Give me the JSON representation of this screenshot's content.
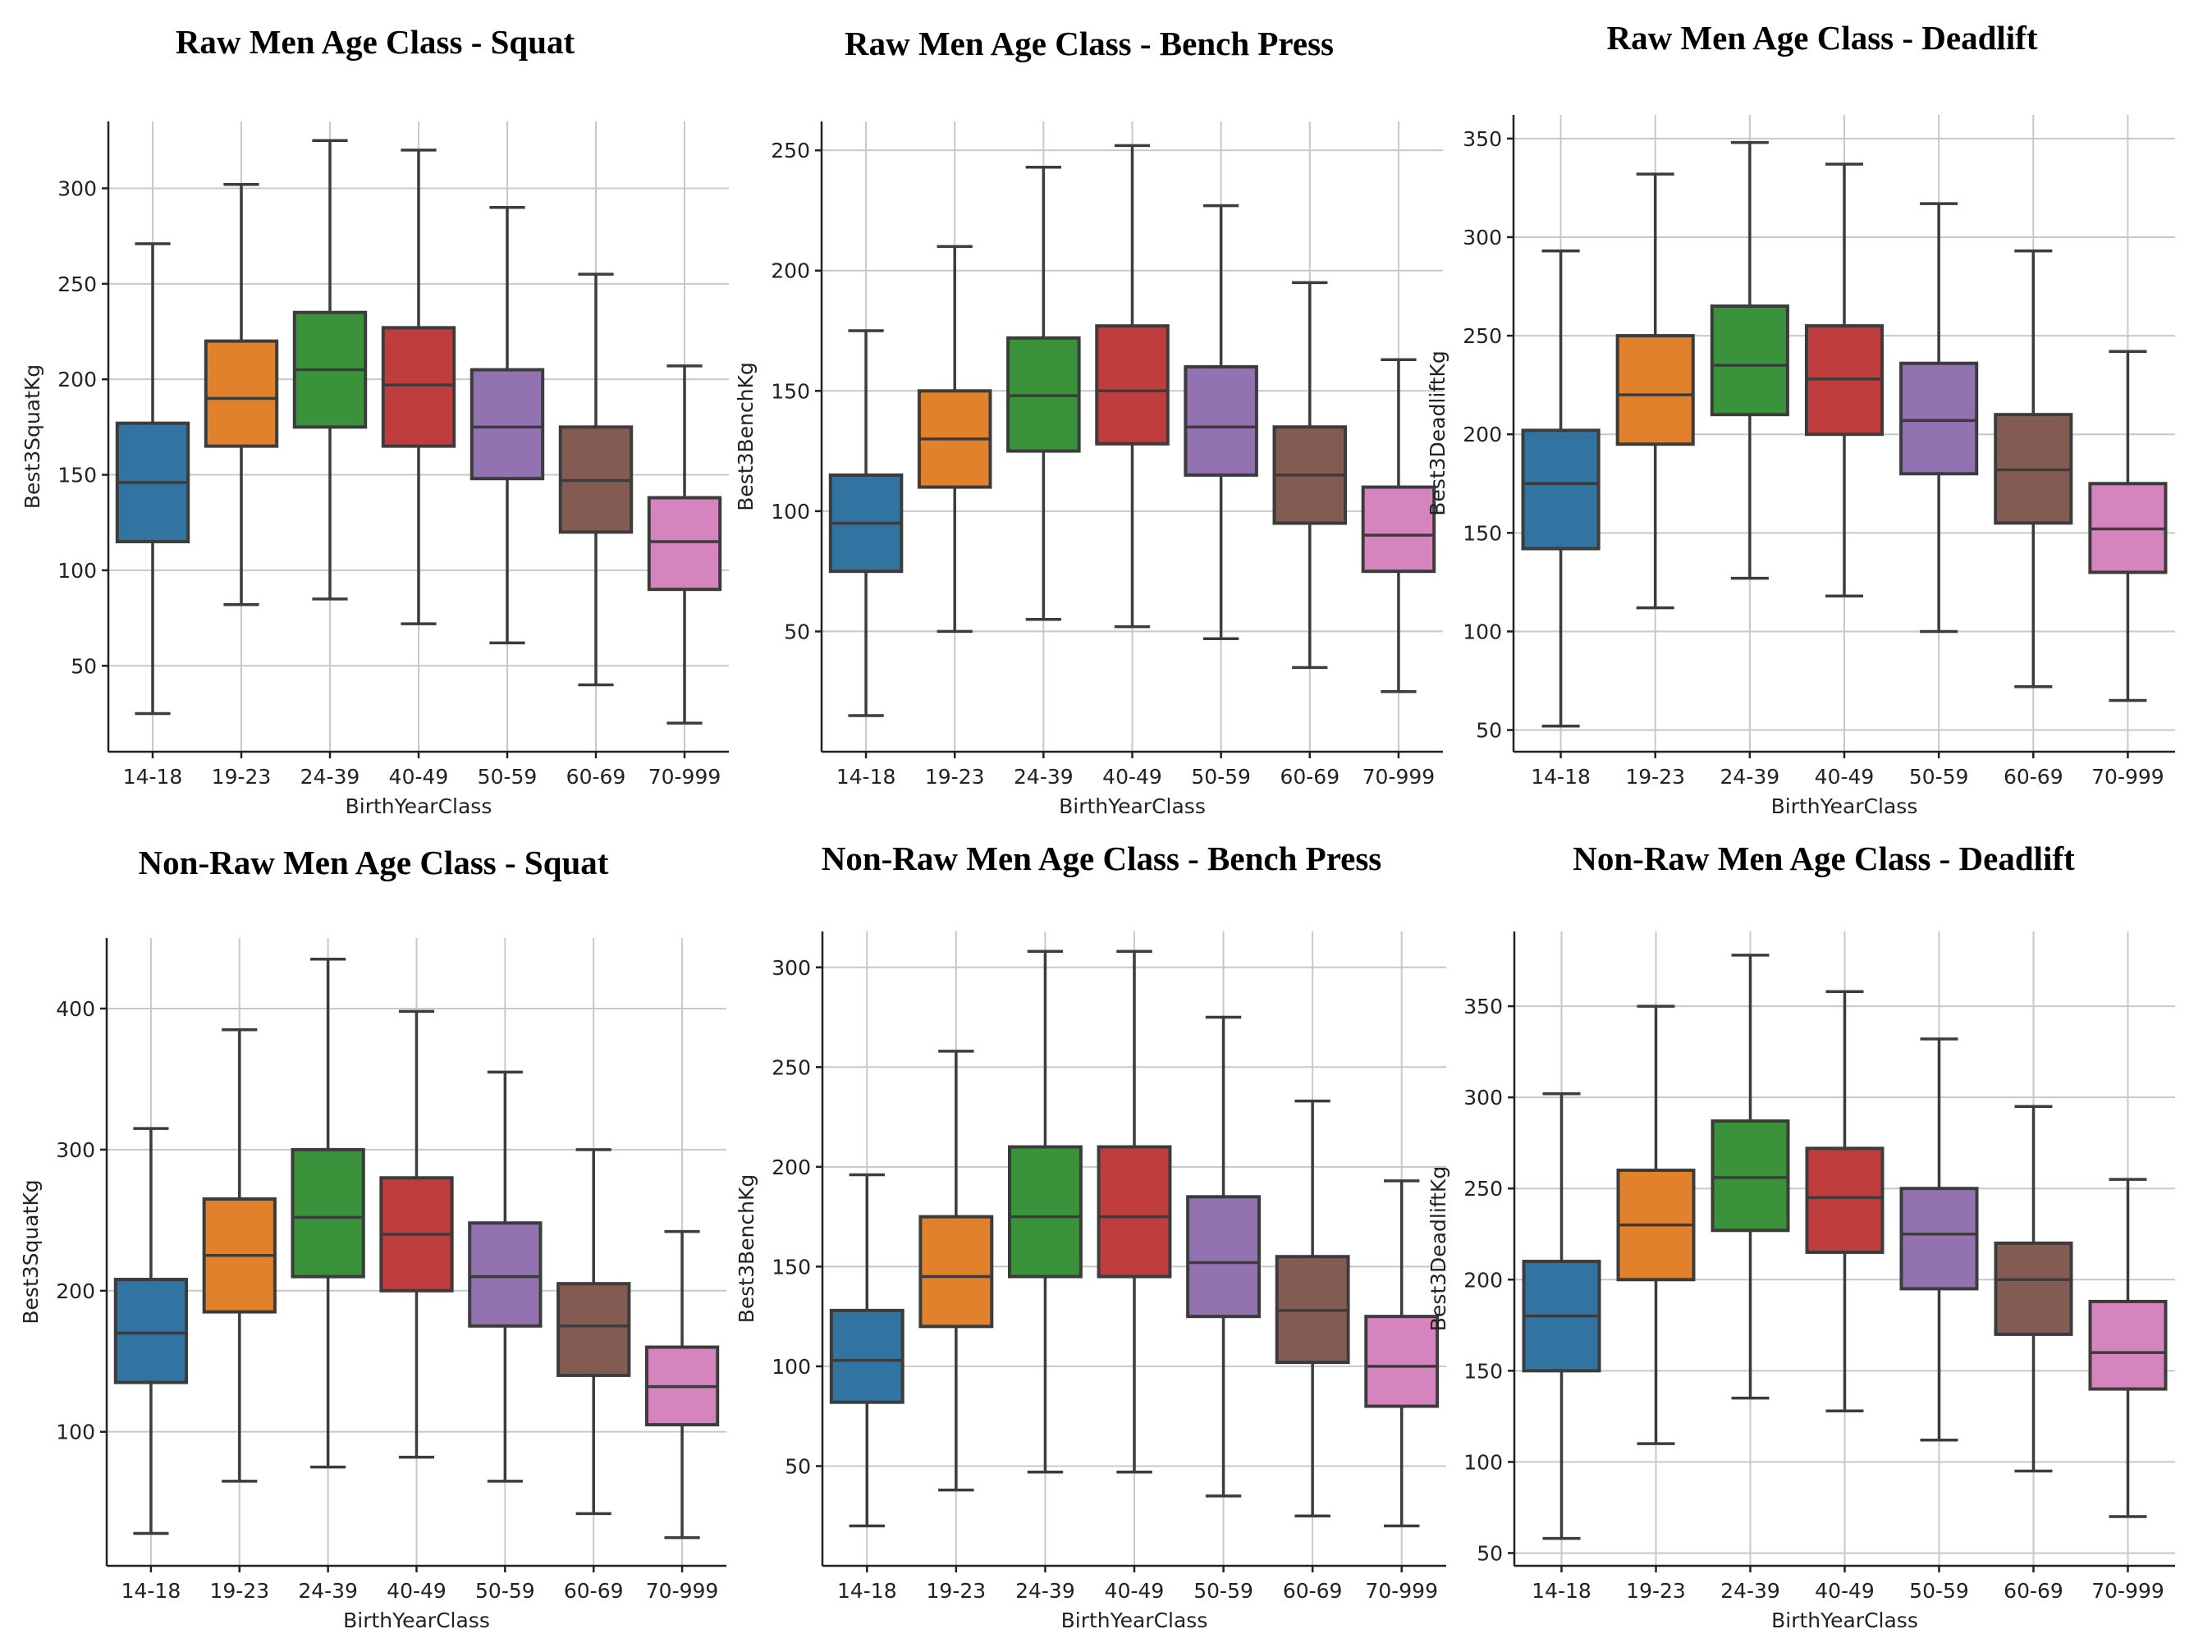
{
  "colors": {
    "14-18": "#3274a1",
    "19-23": "#e1812c",
    "24-39": "#3a923a",
    "40-49": "#c03d3e",
    "50-59": "#9372b2",
    "60-69": "#845b53",
    "70-999": "#d684bd"
  },
  "chart_data": [
    {
      "type": "box",
      "title": "Raw Men Age Class - Squat",
      "xlabel": "BirthYearClass",
      "ylabel": "Best3SquatKg",
      "categories": [
        "14-18",
        "19-23",
        "24-39",
        "40-49",
        "50-59",
        "60-69",
        "70-999"
      ],
      "ylim": [
        5,
        335
      ],
      "yticks": [
        50,
        100,
        150,
        200,
        250,
        300
      ],
      "grid": true,
      "boxes": [
        {
          "min": 25,
          "q1": 115,
          "median": 146,
          "q3": 177,
          "max": 271
        },
        {
          "min": 82,
          "q1": 165,
          "median": 190,
          "q3": 220,
          "max": 302
        },
        {
          "min": 85,
          "q1": 175,
          "median": 205,
          "q3": 235,
          "max": 325
        },
        {
          "min": 72,
          "q1": 165,
          "median": 197,
          "q3": 227,
          "max": 320
        },
        {
          "min": 62,
          "q1": 148,
          "median": 175,
          "q3": 205,
          "max": 290
        },
        {
          "min": 40,
          "q1": 120,
          "median": 147,
          "q3": 175,
          "max": 255
        },
        {
          "min": 20,
          "q1": 90,
          "median": 115,
          "q3": 138,
          "max": 207
        }
      ]
    },
    {
      "type": "box",
      "title": "Raw Men Age Class - Bench Press",
      "xlabel": "BirthYearClass",
      "ylabel": "Best3BenchKg",
      "categories": [
        "14-18",
        "19-23",
        "24-39",
        "40-49",
        "50-59",
        "60-69",
        "70-999"
      ],
      "ylim": [
        0,
        262
      ],
      "yticks": [
        50,
        100,
        150,
        200,
        250
      ],
      "grid": true,
      "boxes": [
        {
          "min": 15,
          "q1": 75,
          "median": 95,
          "q3": 115,
          "max": 175
        },
        {
          "min": 50,
          "q1": 110,
          "median": 130,
          "q3": 150,
          "max": 210
        },
        {
          "min": 55,
          "q1": 125,
          "median": 148,
          "q3": 172,
          "max": 243
        },
        {
          "min": 52,
          "q1": 128,
          "median": 150,
          "q3": 177,
          "max": 252
        },
        {
          "min": 47,
          "q1": 115,
          "median": 135,
          "q3": 160,
          "max": 227
        },
        {
          "min": 35,
          "q1": 95,
          "median": 115,
          "q3": 135,
          "max": 195
        },
        {
          "min": 25,
          "q1": 75,
          "median": 90,
          "q3": 110,
          "max": 163
        }
      ]
    },
    {
      "type": "box",
      "title": "Raw Men Age Class - Deadlift",
      "xlabel": "BirthYearClass",
      "ylabel": "Best3DeadliftKg",
      "categories": [
        "14-18",
        "19-23",
        "24-39",
        "40-49",
        "50-59",
        "60-69",
        "70-999"
      ],
      "ylim": [
        39,
        362
      ],
      "yticks": [
        50,
        100,
        150,
        200,
        250,
        300,
        350
      ],
      "grid": true,
      "boxes": [
        {
          "min": 52,
          "q1": 142,
          "median": 175,
          "q3": 202,
          "max": 293
        },
        {
          "min": 112,
          "q1": 195,
          "median": 220,
          "q3": 250,
          "max": 332
        },
        {
          "min": 127,
          "q1": 210,
          "median": 235,
          "q3": 265,
          "max": 348
        },
        {
          "min": 118,
          "q1": 200,
          "median": 228,
          "q3": 255,
          "max": 337
        },
        {
          "min": 100,
          "q1": 180,
          "median": 207,
          "q3": 236,
          "max": 317
        },
        {
          "min": 72,
          "q1": 155,
          "median": 182,
          "q3": 210,
          "max": 293
        },
        {
          "min": 65,
          "q1": 130,
          "median": 152,
          "q3": 175,
          "max": 242
        }
      ]
    },
    {
      "type": "box",
      "title": "Non-Raw Men Age Class - Squat",
      "xlabel": "BirthYearClass",
      "ylabel": "Best3SquatKg",
      "categories": [
        "14-18",
        "19-23",
        "24-39",
        "40-49",
        "50-59",
        "60-69",
        "70-999"
      ],
      "ylim": [
        5,
        450
      ],
      "yticks": [
        100,
        200,
        300,
        400
      ],
      "grid": true,
      "boxes": [
        {
          "min": 28,
          "q1": 135,
          "median": 170,
          "q3": 208,
          "max": 315
        },
        {
          "min": 65,
          "q1": 185,
          "median": 225,
          "q3": 265,
          "max": 385
        },
        {
          "min": 75,
          "q1": 210,
          "median": 252,
          "q3": 300,
          "max": 435
        },
        {
          "min": 82,
          "q1": 200,
          "median": 240,
          "q3": 280,
          "max": 398
        },
        {
          "min": 65,
          "q1": 175,
          "median": 210,
          "q3": 248,
          "max": 355
        },
        {
          "min": 42,
          "q1": 140,
          "median": 175,
          "q3": 205,
          "max": 300
        },
        {
          "min": 25,
          "q1": 105,
          "median": 132,
          "q3": 160,
          "max": 242
        }
      ]
    },
    {
      "type": "box",
      "title": "Non-Raw Men Age Class - Bench Press",
      "xlabel": "BirthYearClass",
      "ylabel": "Best3BenchKg",
      "categories": [
        "14-18",
        "19-23",
        "24-39",
        "40-49",
        "50-59",
        "60-69",
        "70-999"
      ],
      "ylim": [
        0,
        318
      ],
      "yticks": [
        50,
        100,
        150,
        200,
        250,
        300
      ],
      "grid": true,
      "boxes": [
        {
          "min": 20,
          "q1": 82,
          "median": 103,
          "q3": 128,
          "max": 196
        },
        {
          "min": 38,
          "q1": 120,
          "median": 145,
          "q3": 175,
          "max": 258
        },
        {
          "min": 47,
          "q1": 145,
          "median": 175,
          "q3": 210,
          "max": 308
        },
        {
          "min": 47,
          "q1": 145,
          "median": 175,
          "q3": 210,
          "max": 308
        },
        {
          "min": 35,
          "q1": 125,
          "median": 152,
          "q3": 185,
          "max": 275
        },
        {
          "min": 25,
          "q1": 102,
          "median": 128,
          "q3": 155,
          "max": 233
        },
        {
          "min": 20,
          "q1": 80,
          "median": 100,
          "q3": 125,
          "max": 193
        }
      ]
    },
    {
      "type": "box",
      "title": "Non-Raw Men Age Class - Deadlift",
      "xlabel": "BirthYearClass",
      "ylabel": "Best3DeadliftKg",
      "categories": [
        "14-18",
        "19-23",
        "24-39",
        "40-49",
        "50-59",
        "60-69",
        "70-999"
      ],
      "ylim": [
        43,
        391
      ],
      "yticks": [
        50,
        100,
        150,
        200,
        250,
        300,
        350
      ],
      "grid": true,
      "boxes": [
        {
          "min": 58,
          "q1": 150,
          "median": 180,
          "q3": 210,
          "max": 302
        },
        {
          "min": 110,
          "q1": 200,
          "median": 230,
          "q3": 260,
          "max": 350
        },
        {
          "min": 135,
          "q1": 227,
          "median": 256,
          "q3": 287,
          "max": 378
        },
        {
          "min": 128,
          "q1": 215,
          "median": 245,
          "q3": 272,
          "max": 358
        },
        {
          "min": 112,
          "q1": 195,
          "median": 225,
          "q3": 250,
          "max": 332
        },
        {
          "min": 95,
          "q1": 170,
          "median": 200,
          "q3": 220,
          "max": 295
        },
        {
          "min": 70,
          "q1": 140,
          "median": 160,
          "q3": 188,
          "max": 255
        }
      ]
    }
  ]
}
